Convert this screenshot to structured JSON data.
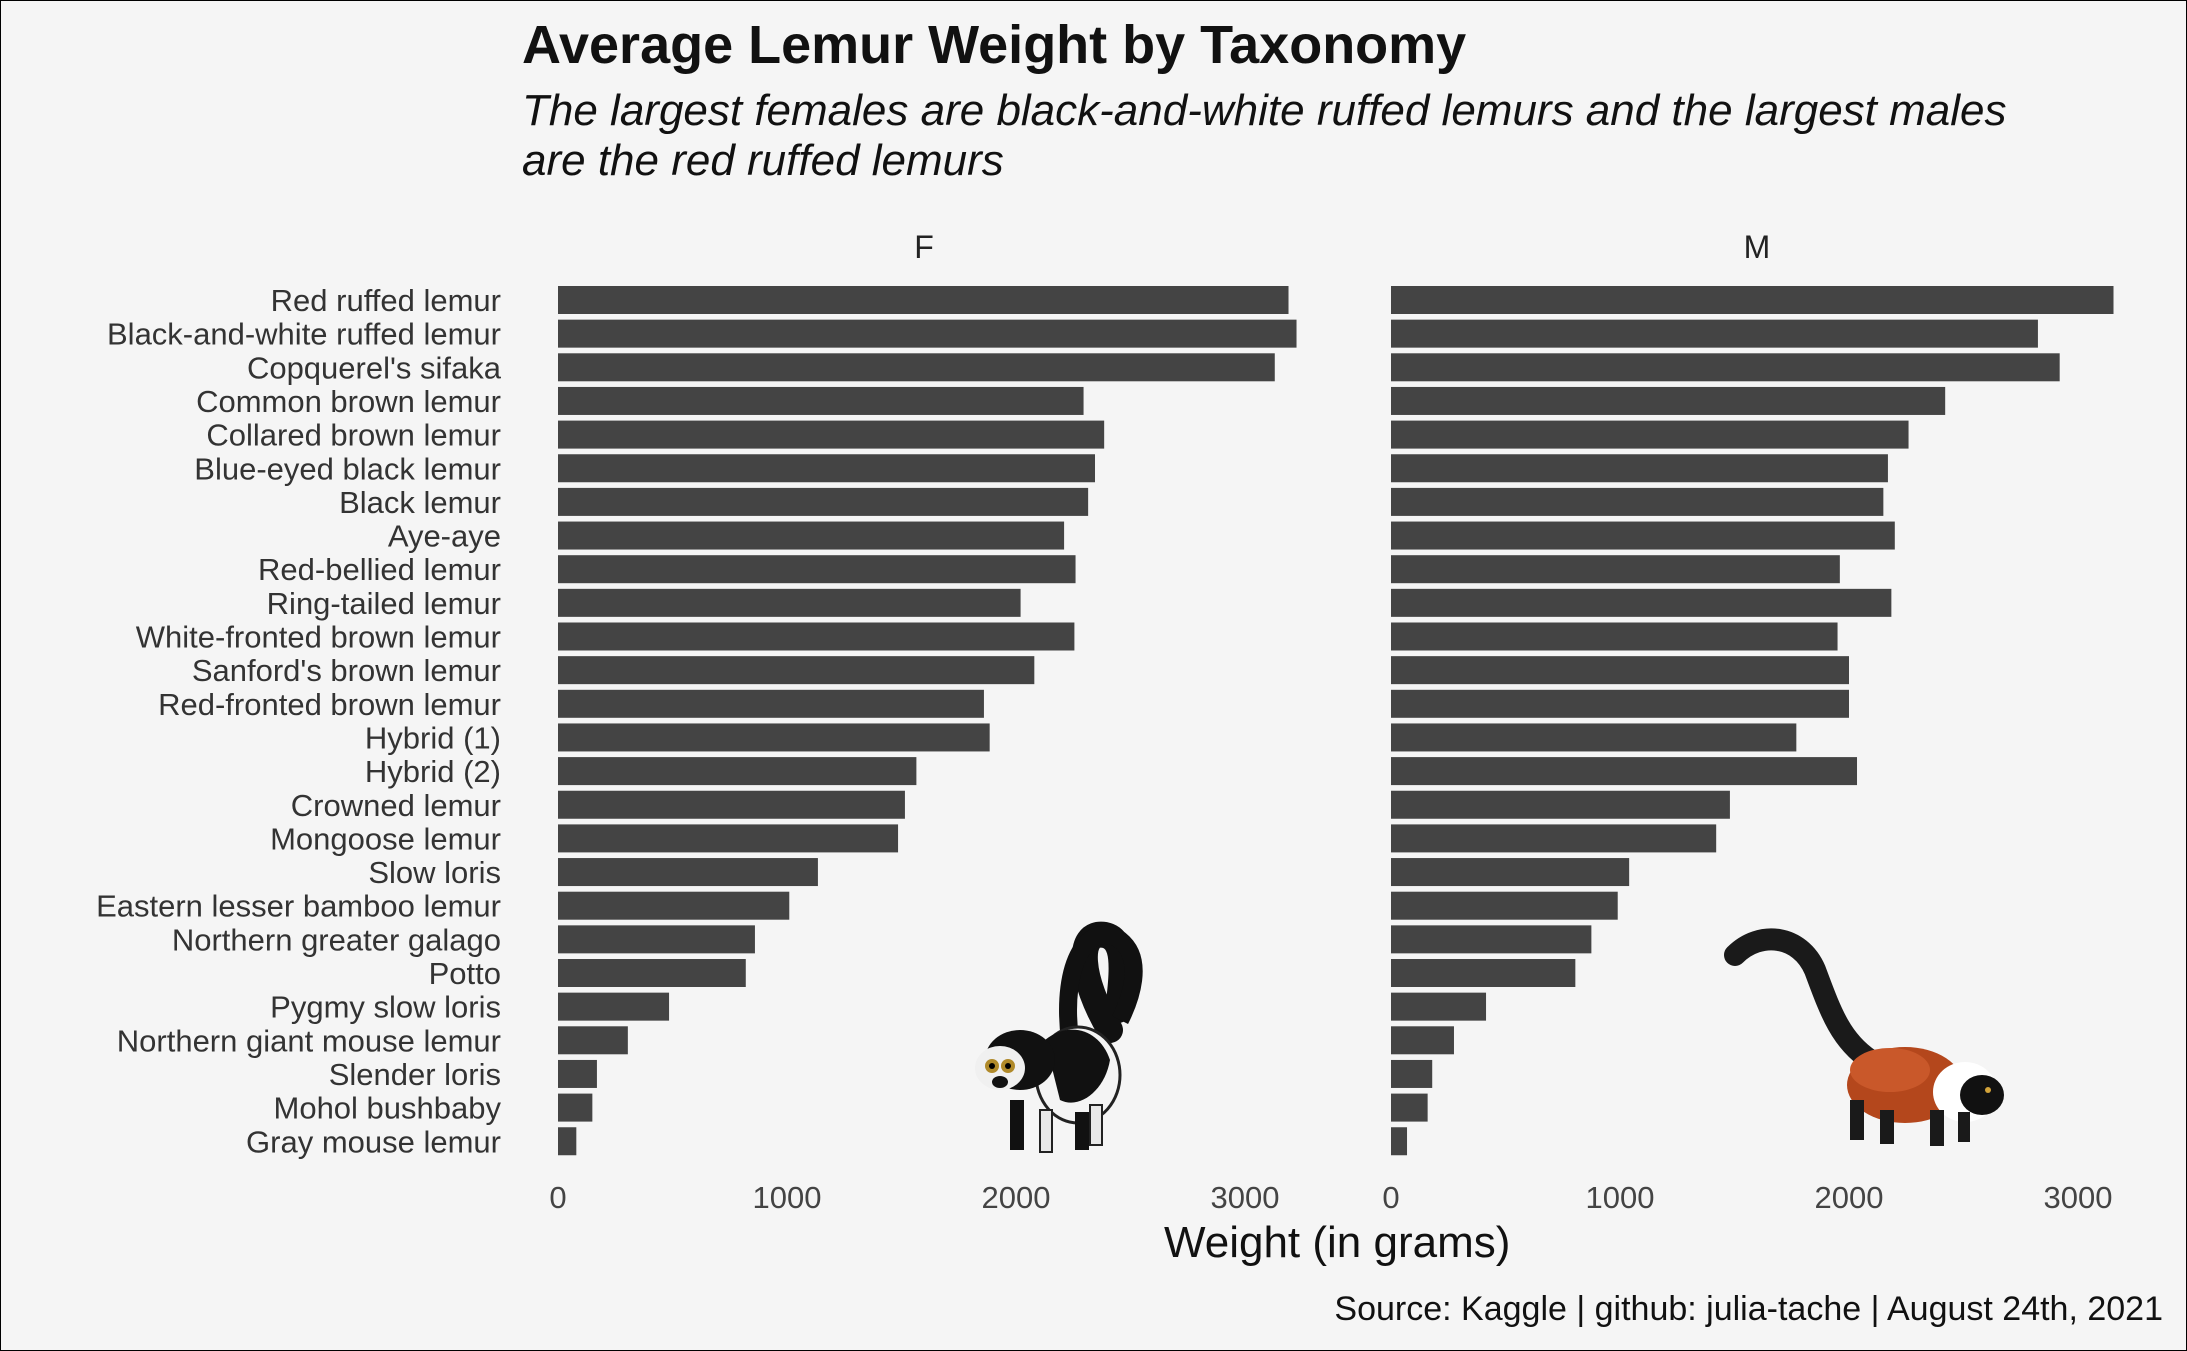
{
  "title": "Average Lemur Weight by Taxonomy",
  "subtitle": "The largest females are black-and-white ruffed lemurs and the largest males are the red ruffed lemurs",
  "source": "Source: Kaggle | github: julia-tache | August 24th, 2021",
  "colors": {
    "background": "#f5f5f5",
    "bar": "#444444",
    "text": "#111111"
  },
  "chart_data": {
    "type": "bar",
    "orientation": "horizontal",
    "title": "Average Lemur Weight by Taxonomy",
    "xlabel": "Weight (in grams)",
    "ylabel": "",
    "xlim": [
      0,
      3200
    ],
    "xticks": [
      "0",
      "1000",
      "2000",
      "3000"
    ],
    "grid": false,
    "facets": [
      "F",
      "M"
    ],
    "categories": [
      "Red ruffed lemur",
      "Black-and-white ruffed lemur",
      "Copquerel's sifaka",
      "Common brown lemur",
      "Collared brown lemur",
      "Blue-eyed black lemur",
      "Black lemur",
      "Aye-aye",
      "Red-bellied lemur",
      "Ring-tailed lemur",
      "White-fronted brown lemur",
      "Sanford's brown lemur",
      "Red-fronted brown lemur",
      "Hybrid (1)",
      "Hybrid (2)",
      "Crowned lemur",
      "Mongoose lemur",
      "Slow loris",
      "Eastern lesser bamboo lemur",
      "Northern greater galago",
      "Potto",
      "Pygmy slow loris",
      "Northern giant mouse lemur",
      "Slender loris",
      "Mohol bushbaby",
      "Gray mouse lemur"
    ],
    "series": [
      {
        "name": "F",
        "values": [
          3190,
          3225,
          3130,
          2295,
          2385,
          2345,
          2315,
          2210,
          2260,
          2020,
          2255,
          2080,
          1860,
          1885,
          1565,
          1515,
          1485,
          1135,
          1010,
          860,
          820,
          485,
          305,
          170,
          150,
          80
        ]
      },
      {
        "name": "M",
        "values": [
          3155,
          2825,
          2920,
          2420,
          2260,
          2170,
          2150,
          2200,
          1960,
          2185,
          1950,
          2000,
          2000,
          1770,
          2035,
          1480,
          1420,
          1040,
          990,
          875,
          805,
          415,
          275,
          180,
          160,
          70
        ]
      }
    ]
  },
  "images": {
    "female_panel": "black-and-white-ruffed-lemur-photo",
    "male_panel": "red-ruffed-lemur-photo"
  }
}
